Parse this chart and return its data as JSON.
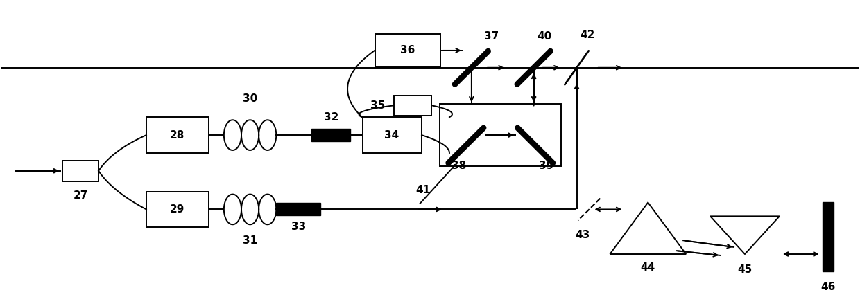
{
  "fig_width": 12.4,
  "fig_height": 4.29,
  "dpi": 100,
  "bg_color": "white",
  "lc": "black",
  "lw": 1.4,
  "fs": 11,
  "xlim": [
    0,
    1240
  ],
  "ylim": [
    0,
    429
  ],
  "upper_y": 95,
  "mid_y": 195,
  "lower_y": 300,
  "vert_x": 830
}
